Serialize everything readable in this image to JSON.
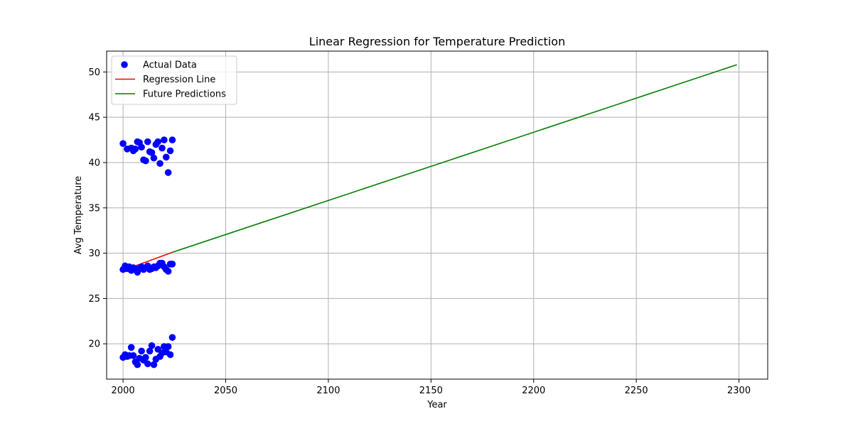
{
  "chart_data": {
    "type": "scatter",
    "title": "Linear Regression for Temperature Prediction",
    "xlabel": "Year",
    "ylabel": "Avg Temperature",
    "xlim": [
      1992,
      2314
    ],
    "ylim": [
      16.1,
      52.3
    ],
    "xticks": [
      2000,
      2050,
      2100,
      2150,
      2200,
      2250,
      2300
    ],
    "yticks": [
      20,
      25,
      30,
      35,
      40,
      45,
      50
    ],
    "grid": true,
    "legend_position": "top-left",
    "series": [
      {
        "name": "Actual Data",
        "kind": "scatter",
        "color": "#0000ff",
        "points": [
          [
            2000,
            42.1
          ],
          [
            2002,
            41.5
          ],
          [
            2004,
            41.6
          ],
          [
            2005,
            41.3
          ],
          [
            2006,
            41.5
          ],
          [
            2007,
            42.3
          ],
          [
            2008,
            42.2
          ],
          [
            2009,
            41.7
          ],
          [
            2010,
            40.3
          ],
          [
            2011,
            40.2
          ],
          [
            2012,
            42.3
          ],
          [
            2013,
            41.2
          ],
          [
            2014,
            41.1
          ],
          [
            2015,
            40.5
          ],
          [
            2016,
            42.0
          ],
          [
            2017,
            42.3
          ],
          [
            2018,
            39.9
          ],
          [
            2019,
            41.6
          ],
          [
            2020,
            42.5
          ],
          [
            2021,
            40.6
          ],
          [
            2022,
            38.9
          ],
          [
            2023,
            41.3
          ],
          [
            2024,
            42.5
          ],
          [
            2000,
            28.2
          ],
          [
            2001,
            28.6
          ],
          [
            2002,
            28.3
          ],
          [
            2003,
            28.5
          ],
          [
            2004,
            28.1
          ],
          [
            2005,
            28.4
          ],
          [
            2006,
            28.3
          ],
          [
            2007,
            27.9
          ],
          [
            2008,
            28.3
          ],
          [
            2009,
            28.5
          ],
          [
            2010,
            28.2
          ],
          [
            2011,
            28.4
          ],
          [
            2012,
            28.6
          ],
          [
            2013,
            28.2
          ],
          [
            2014,
            28.3
          ],
          [
            2015,
            28.5
          ],
          [
            2016,
            28.4
          ],
          [
            2017,
            28.6
          ],
          [
            2018,
            28.9
          ],
          [
            2019,
            28.9
          ],
          [
            2020,
            28.5
          ],
          [
            2021,
            28.2
          ],
          [
            2022,
            28.0
          ],
          [
            2023,
            28.8
          ],
          [
            2024,
            28.8
          ],
          [
            2000,
            18.5
          ],
          [
            2001,
            18.8
          ],
          [
            2002,
            18.6
          ],
          [
            2003,
            18.7
          ],
          [
            2004,
            19.6
          ],
          [
            2005,
            18.7
          ],
          [
            2006,
            18.0
          ],
          [
            2007,
            17.7
          ],
          [
            2008,
            18.4
          ],
          [
            2009,
            19.2
          ],
          [
            2010,
            18.2
          ],
          [
            2011,
            18.5
          ],
          [
            2012,
            17.8
          ],
          [
            2013,
            19.2
          ],
          [
            2014,
            19.8
          ],
          [
            2015,
            17.7
          ],
          [
            2016,
            18.3
          ],
          [
            2017,
            19.4
          ],
          [
            2018,
            18.6
          ],
          [
            2019,
            19.0
          ],
          [
            2020,
            19.7
          ],
          [
            2021,
            19.1
          ],
          [
            2022,
            19.7
          ],
          [
            2023,
            18.8
          ],
          [
            2024,
            20.7
          ]
        ]
      },
      {
        "name": "Regression Line",
        "kind": "line",
        "color": "#ff0000",
        "points": [
          [
            2000,
            28.1
          ],
          [
            2024,
            30.1
          ]
        ]
      },
      {
        "name": "Future Predictions",
        "kind": "line",
        "color": "#008000",
        "points": [
          [
            2024,
            30.1
          ],
          [
            2299,
            50.8
          ]
        ]
      }
    ]
  }
}
